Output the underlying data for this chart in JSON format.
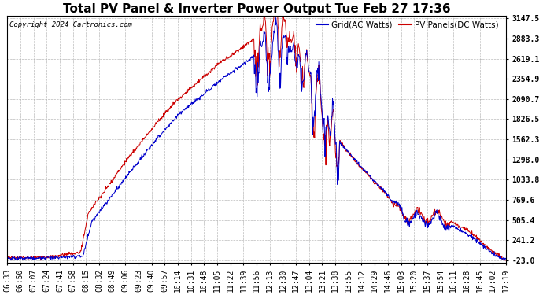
{
  "title": "Total PV Panel & Inverter Power Output Tue Feb 27 17:36",
  "copyright": "Copyright 2024 Cartronics.com",
  "legend_blue": "Grid(AC Watts)",
  "legend_red": "PV Panels(DC Watts)",
  "yticks": [
    3147.5,
    2883.3,
    2619.1,
    2354.9,
    2090.7,
    1826.5,
    1562.3,
    1298.0,
    1033.8,
    769.6,
    505.4,
    241.2,
    -23.0
  ],
  "ymin": -23.0,
  "ymax": 3147.5,
  "background_color": "#ffffff",
  "grid_color": "#aaaaaa",
  "blue_color": "#0000cc",
  "red_color": "#cc0000",
  "title_fontsize": 11,
  "tick_fontsize": 7,
  "xtick_labels": [
    "06:33",
    "06:50",
    "07:07",
    "07:24",
    "07:41",
    "07:58",
    "08:15",
    "08:32",
    "08:49",
    "09:06",
    "09:23",
    "09:40",
    "09:57",
    "10:14",
    "10:31",
    "10:48",
    "11:05",
    "11:22",
    "11:39",
    "11:56",
    "12:13",
    "12:30",
    "12:47",
    "13:04",
    "13:21",
    "13:38",
    "13:55",
    "14:12",
    "14:29",
    "14:46",
    "15:03",
    "15:20",
    "15:37",
    "15:54",
    "16:11",
    "16:28",
    "16:45",
    "17:02",
    "17:19"
  ]
}
